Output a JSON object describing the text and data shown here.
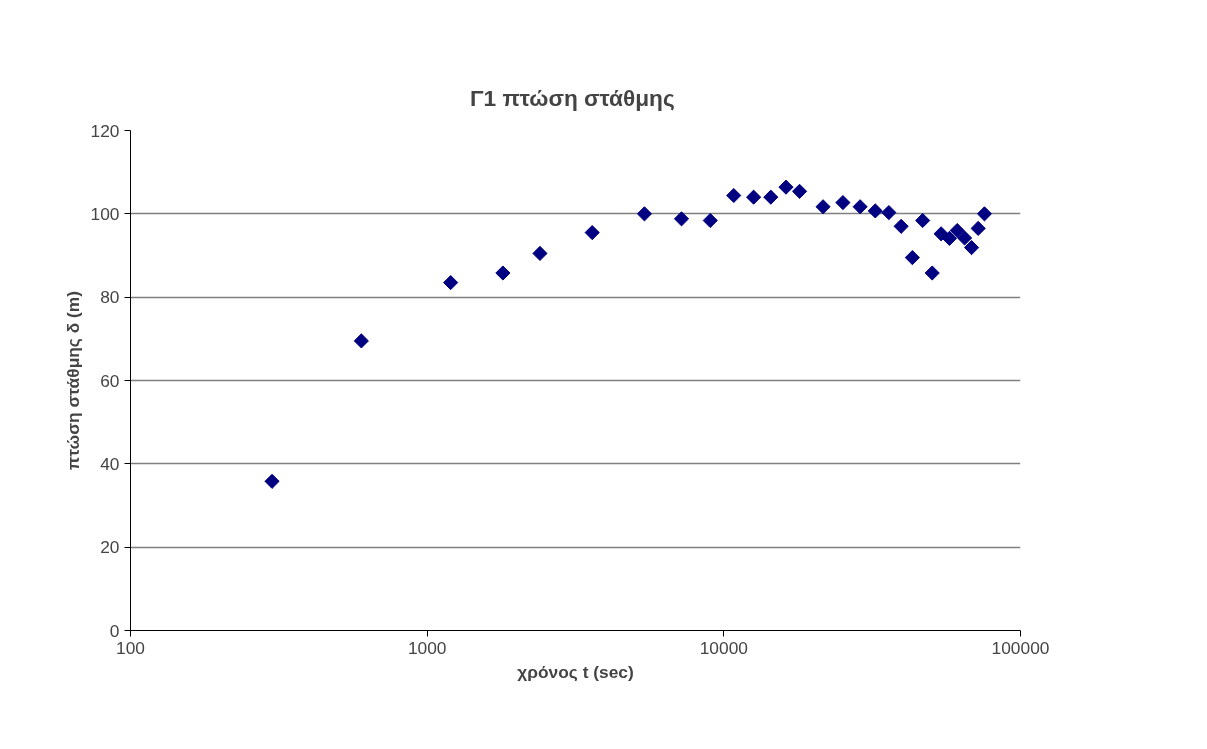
{
  "chart_data": {
    "type": "scatter",
    "title": "Γ1  πτώση στάθμης",
    "xlabel": "χρόνος t (sec)",
    "ylabel": "πτώση στάθμης δ (m)",
    "x": [
      300,
      600,
      1200,
      1800,
      2400,
      3600,
      5400,
      7200,
      9000,
      10800,
      12600,
      14400,
      16200,
      18000,
      21600,
      25200,
      28800,
      32400,
      36000,
      39600,
      43200,
      46800,
      50400,
      54000,
      57600,
      61200,
      64800,
      68400,
      72000,
      75600
    ],
    "series": [
      {
        "color": "#000080",
        "values": [
          35.8,
          69.5,
          83.5,
          85.8,
          90.5,
          95.5,
          100.0,
          98.8,
          98.4,
          104.4,
          104.0,
          104.0,
          106.4,
          105.4,
          101.7,
          102.7,
          101.7,
          100.7,
          100.3,
          97.0,
          89.5,
          98.4,
          85.8,
          95.2,
          94.1,
          96.0,
          94.2,
          91.9,
          96.5,
          100.0
        ]
      }
    ],
    "log": "x",
    "xlim": [
      100,
      100000
    ],
    "xticks": [
      100,
      1000,
      10000,
      100000
    ],
    "ylim": [
      0,
      120
    ],
    "yticks": [
      0,
      20,
      40,
      60,
      80,
      100,
      120
    ],
    "grid": "y",
    "marker": "diamond"
  }
}
